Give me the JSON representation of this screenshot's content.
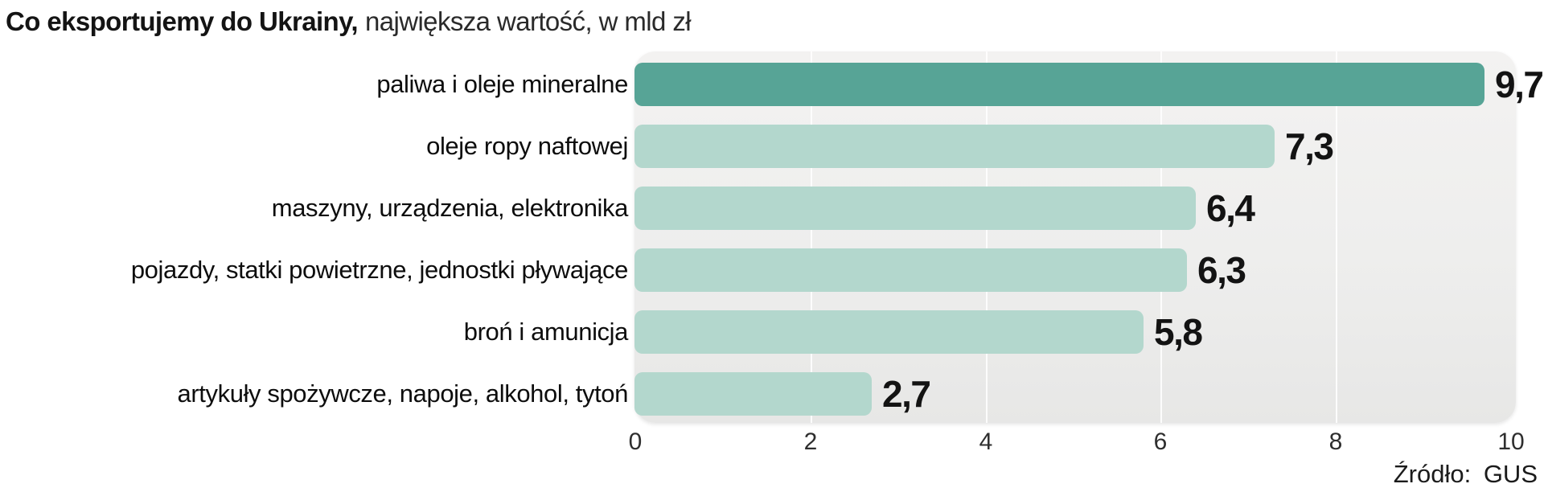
{
  "title": {
    "bold": "Co eksportujemy do Ukrainy,",
    "regular": "największa wartość, w mld zł"
  },
  "source": "Źródło: GUS",
  "chart_data": {
    "type": "bar",
    "orientation": "horizontal",
    "title": "Co eksportujemy do Ukrainy, największa wartość, w mld zł",
    "categories": [
      "paliwa i oleje mineralne",
      "oleje ropy naftowej",
      "maszyny, urządzenia, elektronika",
      "pojazdy, statki powietrzne, jednostki pływające",
      "broń i amunicja",
      "artykuły spożywcze, napoje, alkohol, tytoń"
    ],
    "values": [
      9.7,
      7.3,
      6.4,
      6.3,
      5.8,
      2.7
    ],
    "value_labels": [
      "9,7",
      "7,3",
      "6,4",
      "6,3",
      "5,8",
      "2,7"
    ],
    "unit": "mld zł",
    "xlim": [
      0,
      10
    ],
    "xticks": [
      0,
      2,
      4,
      6,
      8,
      10
    ],
    "gridlines_at": [
      2,
      4,
      6,
      8
    ],
    "legend": "none",
    "grid": true,
    "colors": {
      "first_bar": "#57a496",
      "other_bars": "#b3d7cd",
      "plot_bg_top": "#f3f2f1",
      "plot_bg_bottom": "#e7e7e6",
      "gridline": "#ffffff",
      "text": "#131313"
    }
  }
}
